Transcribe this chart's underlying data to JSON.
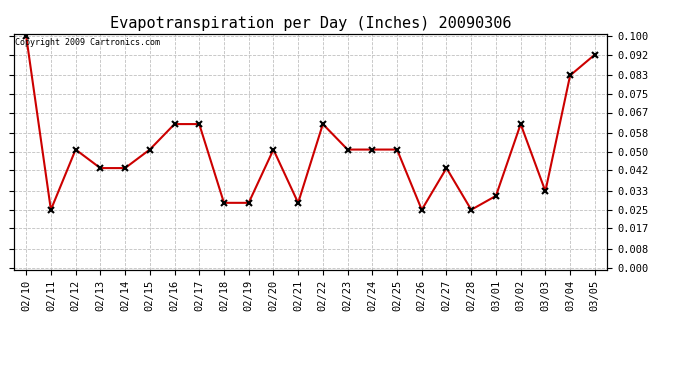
{
  "title": "Evapotranspiration per Day (Inches) 20090306",
  "copyright_text": "Copyright 2009 Cartronics.com",
  "dates": [
    "02/10",
    "02/11",
    "02/12",
    "02/13",
    "02/14",
    "02/15",
    "02/16",
    "02/17",
    "02/18",
    "02/19",
    "02/20",
    "02/21",
    "02/22",
    "02/23",
    "02/24",
    "02/25",
    "02/26",
    "02/27",
    "02/28",
    "03/01",
    "03/02",
    "03/03",
    "03/04",
    "03/05"
  ],
  "values": [
    0.1,
    0.025,
    0.051,
    0.043,
    0.043,
    0.051,
    0.062,
    0.062,
    0.028,
    0.028,
    0.051,
    0.028,
    0.062,
    0.051,
    0.051,
    0.051,
    0.025,
    0.043,
    0.025,
    0.031,
    0.062,
    0.033,
    0.083,
    0.092
  ],
  "yticks": [
    0.0,
    0.008,
    0.017,
    0.025,
    0.033,
    0.042,
    0.05,
    0.058,
    0.067,
    0.075,
    0.083,
    0.092,
    0.1
  ],
  "ymin": 0.0,
  "ymax": 0.1,
  "line_color": "#cc0000",
  "marker": "x",
  "marker_color": "#000000",
  "background_color": "#ffffff",
  "grid_color": "#c0c0c0",
  "title_fontsize": 11,
  "copyright_fontsize": 6,
  "tick_fontsize": 7.5
}
